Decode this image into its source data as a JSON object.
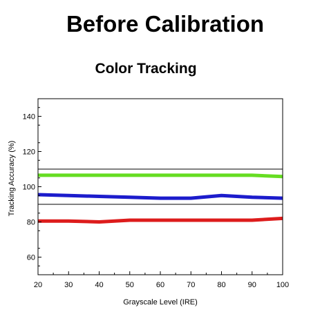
{
  "header": {
    "title": "Before Calibration",
    "subtitle": "Color Tracking"
  },
  "chart_data": {
    "type": "line",
    "title": "Color Tracking",
    "xlabel": "Grayscale Level (IRE)",
    "ylabel": "Tracking Accuracy (%)",
    "xlim": [
      20,
      100
    ],
    "ylim": [
      50,
      150
    ],
    "xticks": [
      20,
      30,
      40,
      50,
      60,
      70,
      80,
      90,
      100
    ],
    "yticks": [
      60,
      80,
      100,
      120,
      140
    ],
    "grid": false,
    "reference_lines": [
      110,
      90
    ],
    "x": [
      20,
      30,
      40,
      50,
      60,
      70,
      80,
      90,
      100
    ],
    "series": [
      {
        "color": "#66dd22",
        "values": [
          106.5,
          106.5,
          106.5,
          106.5,
          106.5,
          106.5,
          106.5,
          106.5,
          105.8
        ]
      },
      {
        "color": "#1c1ccc",
        "values": [
          95.5,
          95,
          94.5,
          94,
          93.5,
          93.5,
          95,
          94,
          93.5
        ]
      },
      {
        "color": "#dd1c1c",
        "values": [
          80.5,
          80.5,
          80,
          81,
          81,
          81,
          81,
          81,
          82
        ]
      }
    ]
  }
}
